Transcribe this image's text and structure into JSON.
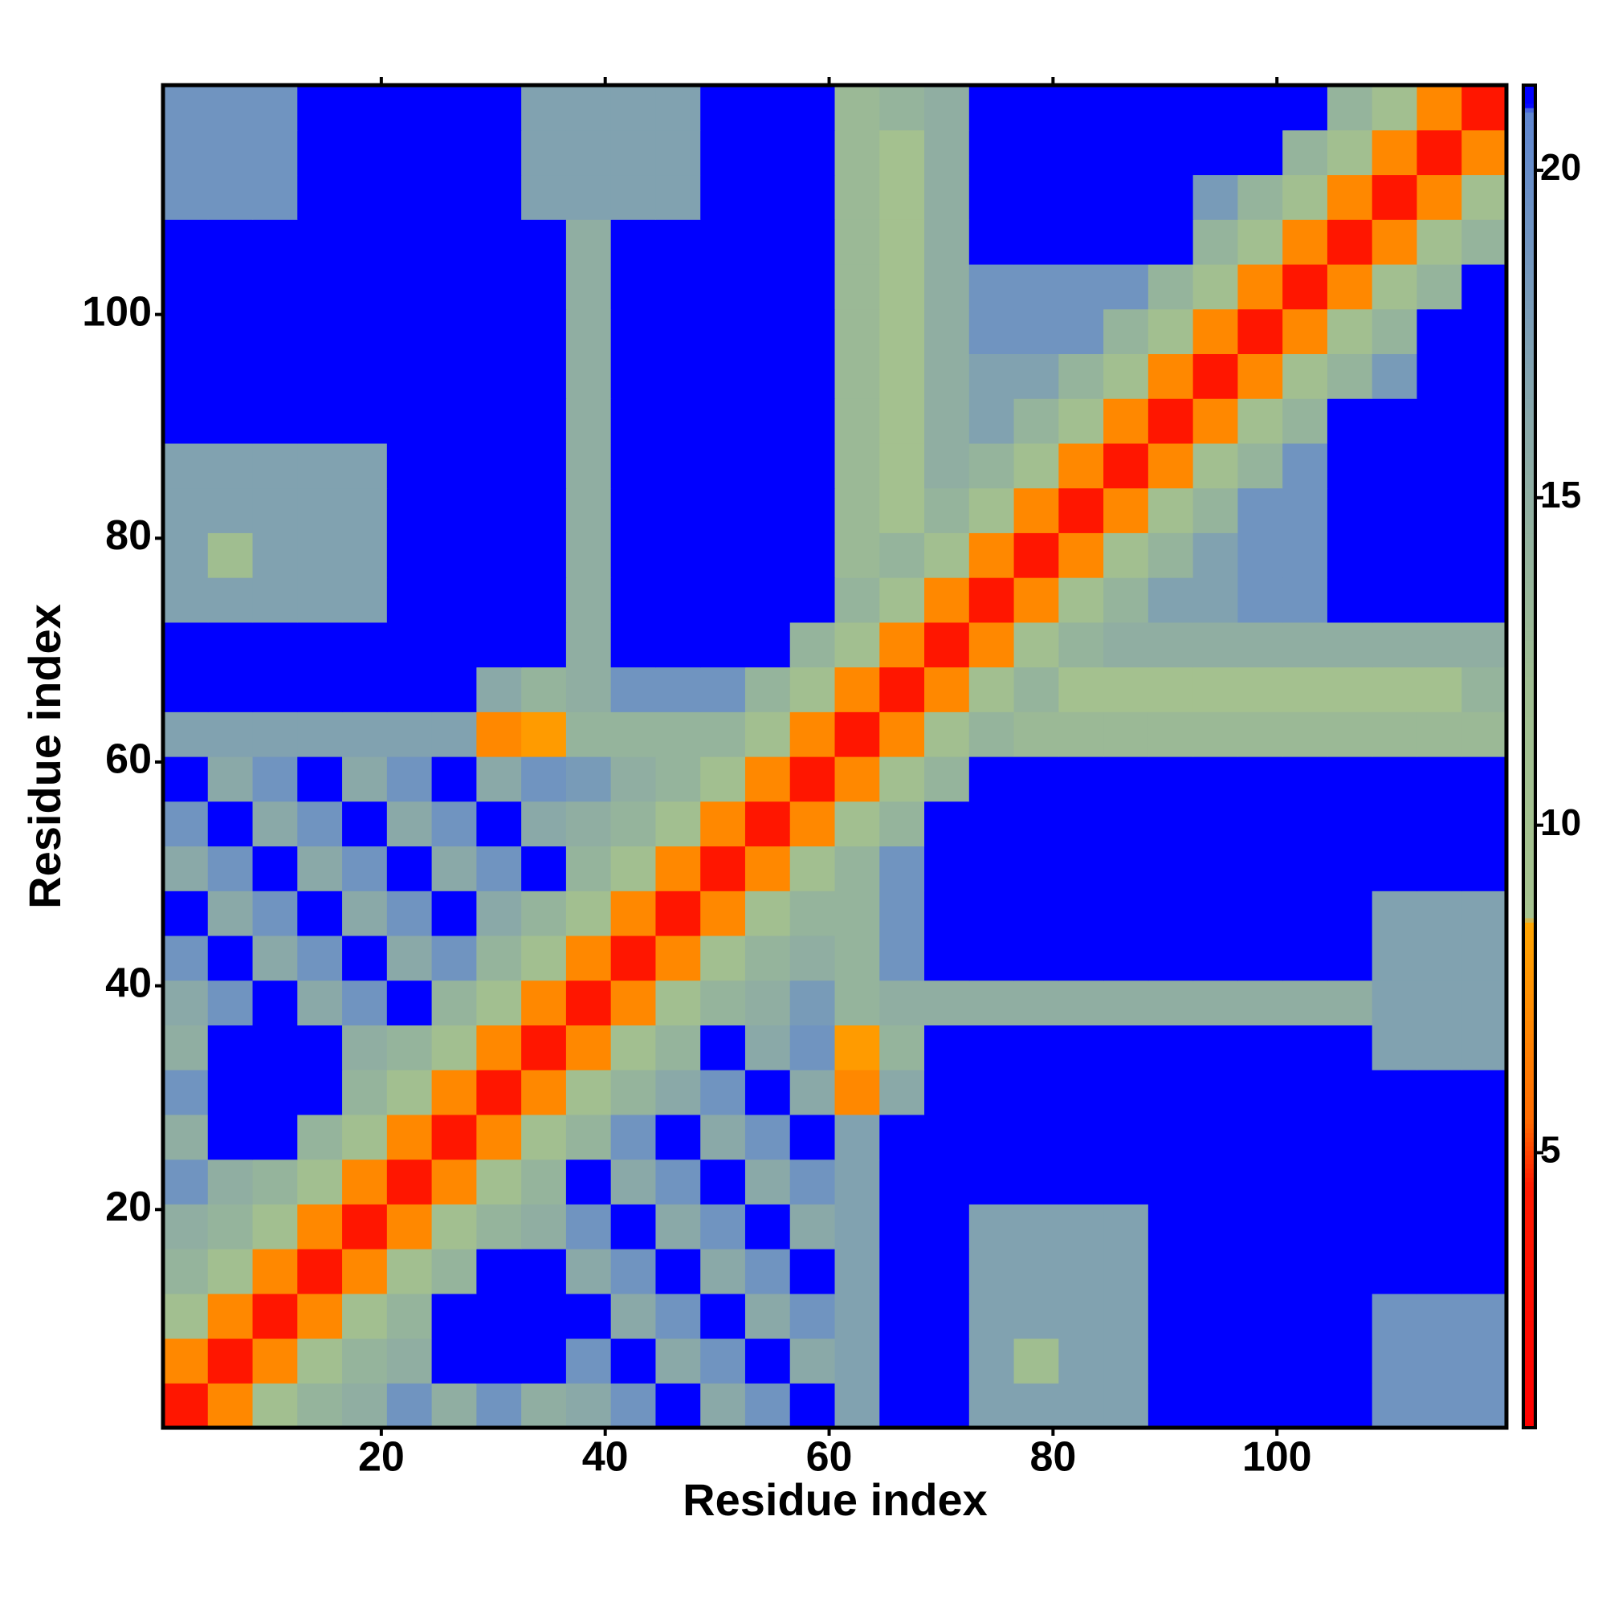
{
  "chart_data": {
    "type": "heatmap",
    "x_label": "Residue index",
    "y_label": "Residue index",
    "xlim": [
      0.5,
      120.5
    ],
    "ylim": [
      0.5,
      120.5
    ],
    "xticks": [
      20,
      40,
      60,
      80,
      100
    ],
    "yticks": [
      20,
      40,
      60,
      80,
      100
    ],
    "x": [
      2.5,
      6.5,
      10.5,
      14.5,
      18.5,
      22.5,
      26.5,
      30.5,
      34.5,
      38.5,
      42.5,
      46.5,
      50.5,
      54.5,
      58.5,
      62.5,
      66.5,
      70.5,
      74.5,
      78.5,
      82.5,
      86.5,
      90.5,
      94.5,
      98.5,
      102.5,
      106.5,
      110.5,
      114.5,
      118.5
    ],
    "y": [
      2.5,
      6.5,
      10.5,
      14.5,
      18.5,
      22.5,
      26.5,
      30.5,
      34.5,
      38.5,
      42.5,
      46.5,
      50.5,
      54.5,
      58.5,
      62.5,
      66.5,
      70.5,
      74.5,
      78.5,
      82.5,
      86.5,
      90.5,
      94.5,
      98.5,
      102.5,
      106.5,
      110.5,
      114.5,
      118.5
    ],
    "z": [
      [
        4,
        7,
        11,
        14,
        15,
        19,
        15,
        19,
        15,
        16,
        19,
        22,
        16,
        19,
        22,
        17,
        22,
        22,
        17,
        17,
        17,
        17,
        22,
        22,
        22,
        22,
        22,
        19,
        19,
        19
      ],
      [
        7,
        4,
        7,
        11,
        14,
        15,
        22,
        22,
        22,
        19,
        22,
        16,
        19,
        22,
        16,
        17,
        22,
        22,
        17,
        12,
        17,
        17,
        22,
        22,
        22,
        22,
        22,
        19,
        19,
        19
      ],
      [
        11,
        7,
        4,
        7,
        11,
        14,
        22,
        22,
        22,
        22,
        16,
        19,
        22,
        16,
        19,
        17,
        22,
        22,
        17,
        17,
        17,
        17,
        22,
        22,
        22,
        22,
        22,
        19,
        19,
        19
      ],
      [
        14,
        11,
        7,
        4,
        7,
        11,
        14,
        22,
        22,
        16,
        19,
        22,
        16,
        19,
        22,
        17,
        22,
        22,
        17,
        17,
        17,
        17,
        22,
        22,
        22,
        22,
        22,
        22,
        22,
        22
      ],
      [
        15,
        14,
        11,
        7,
        4,
        7,
        11,
        14,
        15,
        19,
        22,
        16,
        19,
        22,
        16,
        17,
        22,
        22,
        17,
        17,
        17,
        17,
        22,
        22,
        22,
        22,
        22,
        22,
        22,
        22
      ],
      [
        19,
        15,
        14,
        11,
        7,
        4,
        7,
        11,
        14,
        22,
        16,
        19,
        22,
        16,
        19,
        17,
        22,
        22,
        22,
        22,
        22,
        22,
        22,
        22,
        22,
        22,
        22,
        22,
        22,
        22
      ],
      [
        15,
        22,
        22,
        14,
        11,
        7,
        4,
        7,
        11,
        14,
        19,
        22,
        16,
        19,
        22,
        17,
        22,
        22,
        22,
        22,
        22,
        22,
        22,
        22,
        22,
        22,
        22,
        22,
        22,
        22
      ],
      [
        19,
        22,
        22,
        22,
        14,
        11,
        7,
        4,
        7,
        11,
        14,
        16,
        19,
        22,
        16,
        7,
        16,
        22,
        22,
        22,
        22,
        22,
        22,
        22,
        22,
        22,
        22,
        22,
        22,
        22
      ],
      [
        15,
        22,
        22,
        22,
        15,
        14,
        11,
        7,
        4,
        7,
        11,
        14,
        22,
        16,
        19,
        8,
        14,
        22,
        22,
        22,
        22,
        22,
        22,
        22,
        22,
        22,
        22,
        17,
        17,
        17
      ],
      [
        16,
        19,
        22,
        16,
        19,
        22,
        14,
        11,
        7,
        4,
        7,
        11,
        14,
        15,
        18,
        14,
        15,
        15,
        15,
        15,
        15,
        15,
        15,
        15,
        15,
        15,
        15,
        17,
        17,
        17
      ],
      [
        19,
        22,
        16,
        19,
        22,
        16,
        19,
        14,
        11,
        7,
        4,
        7,
        11,
        14,
        15,
        14,
        19,
        22,
        22,
        22,
        22,
        22,
        22,
        22,
        22,
        22,
        22,
        17,
        17,
        17
      ],
      [
        22,
        16,
        19,
        22,
        16,
        19,
        22,
        16,
        14,
        11,
        7,
        4,
        7,
        11,
        14,
        14,
        19,
        22,
        22,
        22,
        22,
        22,
        22,
        22,
        22,
        22,
        22,
        17,
        17,
        17
      ],
      [
        16,
        19,
        22,
        16,
        19,
        22,
        16,
        19,
        22,
        14,
        11,
        7,
        4,
        7,
        11,
        14,
        19,
        22,
        22,
        22,
        22,
        22,
        22,
        22,
        22,
        22,
        22,
        22,
        22,
        22
      ],
      [
        19,
        22,
        16,
        19,
        22,
        16,
        19,
        22,
        16,
        15,
        14,
        11,
        7,
        4,
        7,
        11,
        14,
        22,
        22,
        22,
        22,
        22,
        22,
        22,
        22,
        22,
        22,
        22,
        22,
        22
      ],
      [
        22,
        16,
        19,
        22,
        16,
        19,
        22,
        16,
        19,
        18,
        15,
        14,
        11,
        7,
        4,
        7,
        11,
        14,
        22,
        22,
        22,
        22,
        22,
        22,
        22,
        22,
        22,
        22,
        22,
        22
      ],
      [
        17,
        17,
        17,
        17,
        17,
        17,
        17,
        7,
        8,
        14,
        14,
        14,
        14,
        11,
        7,
        4,
        7,
        11,
        14,
        13,
        13,
        13,
        13,
        13,
        13,
        13,
        13,
        13,
        13,
        13
      ],
      [
        22,
        22,
        22,
        22,
        22,
        22,
        22,
        16,
        14,
        15,
        19,
        19,
        19,
        14,
        11,
        7,
        4,
        7,
        11,
        14,
        10,
        10,
        10,
        10,
        10,
        10,
        10,
        10,
        10,
        14
      ],
      [
        22,
        22,
        22,
        22,
        22,
        22,
        22,
        22,
        22,
        15,
        22,
        22,
        22,
        22,
        14,
        11,
        7,
        4,
        7,
        11,
        14,
        15,
        15,
        15,
        15,
        15,
        15,
        15,
        15,
        15
      ],
      [
        17,
        17,
        17,
        17,
        17,
        22,
        22,
        22,
        22,
        15,
        22,
        22,
        22,
        22,
        22,
        14,
        11,
        7,
        4,
        7,
        11,
        14,
        17,
        17,
        19,
        19,
        22,
        22,
        22,
        22
      ],
      [
        17,
        12,
        17,
        17,
        17,
        22,
        22,
        22,
        22,
        15,
        22,
        22,
        22,
        22,
        22,
        13,
        14,
        11,
        7,
        4,
        7,
        11,
        14,
        17,
        19,
        19,
        22,
        22,
        22,
        22
      ],
      [
        17,
        17,
        17,
        17,
        17,
        22,
        22,
        22,
        22,
        15,
        22,
        22,
        22,
        22,
        22,
        13,
        10,
        14,
        11,
        7,
        4,
        7,
        11,
        14,
        19,
        19,
        22,
        22,
        22,
        22
      ],
      [
        17,
        17,
        17,
        17,
        17,
        22,
        22,
        22,
        22,
        15,
        22,
        22,
        22,
        22,
        22,
        13,
        10,
        15,
        14,
        11,
        7,
        4,
        7,
        11,
        14,
        19,
        22,
        22,
        22,
        22
      ],
      [
        22,
        22,
        22,
        22,
        22,
        22,
        22,
        22,
        22,
        15,
        22,
        22,
        22,
        22,
        22,
        13,
        10,
        15,
        17,
        14,
        11,
        7,
        4,
        7,
        11,
        14,
        22,
        22,
        22,
        22
      ],
      [
        22,
        22,
        22,
        22,
        22,
        22,
        22,
        22,
        22,
        15,
        22,
        22,
        22,
        22,
        22,
        13,
        10,
        15,
        17,
        17,
        14,
        11,
        7,
        4,
        7,
        11,
        14,
        18,
        22,
        22
      ],
      [
        22,
        22,
        22,
        22,
        22,
        22,
        22,
        22,
        22,
        15,
        22,
        22,
        22,
        22,
        22,
        13,
        10,
        15,
        19,
        19,
        19,
        14,
        11,
        7,
        4,
        7,
        11,
        14,
        22,
        22
      ],
      [
        22,
        22,
        22,
        22,
        22,
        22,
        22,
        22,
        22,
        15,
        22,
        22,
        22,
        22,
        22,
        13,
        10,
        15,
        19,
        19,
        19,
        19,
        14,
        11,
        7,
        4,
        7,
        11,
        14,
        22
      ],
      [
        22,
        22,
        22,
        22,
        22,
        22,
        22,
        22,
        22,
        15,
        22,
        22,
        22,
        22,
        22,
        13,
        10,
        15,
        22,
        22,
        22,
        22,
        22,
        14,
        11,
        7,
        4,
        7,
        11,
        14
      ],
      [
        19,
        19,
        19,
        22,
        22,
        22,
        22,
        22,
        17,
        17,
        17,
        17,
        22,
        22,
        22,
        13,
        10,
        15,
        22,
        22,
        22,
        22,
        22,
        18,
        14,
        11,
        7,
        4,
        7,
        11
      ],
      [
        19,
        19,
        19,
        22,
        22,
        22,
        22,
        22,
        17,
        17,
        17,
        17,
        22,
        22,
        22,
        13,
        10,
        15,
        22,
        22,
        22,
        22,
        22,
        22,
        22,
        14,
        11,
        7,
        4,
        7
      ],
      [
        19,
        19,
        19,
        22,
        22,
        22,
        22,
        22,
        17,
        17,
        17,
        17,
        22,
        22,
        22,
        13,
        14,
        15,
        22,
        22,
        22,
        22,
        22,
        22,
        22,
        22,
        14,
        11,
        7,
        4
      ]
    ],
    "colorbar": {
      "lim": [
        0.8,
        21.3
      ],
      "ticks": [
        5,
        10,
        15,
        20
      ],
      "stops": [
        [
          0.8,
          "#ff0000"
        ],
        [
          4.5,
          "#ff1a00"
        ],
        [
          5.5,
          "#ff6a00"
        ],
        [
          8.5,
          "#ffa500"
        ],
        [
          8.6,
          "#a6c38f"
        ],
        [
          12,
          "#a0be90"
        ],
        [
          16,
          "#8aa9a8"
        ],
        [
          20.9,
          "#5f86d0"
        ],
        [
          21,
          "#0000ff"
        ],
        [
          21.3,
          "#0000ff"
        ]
      ]
    }
  }
}
